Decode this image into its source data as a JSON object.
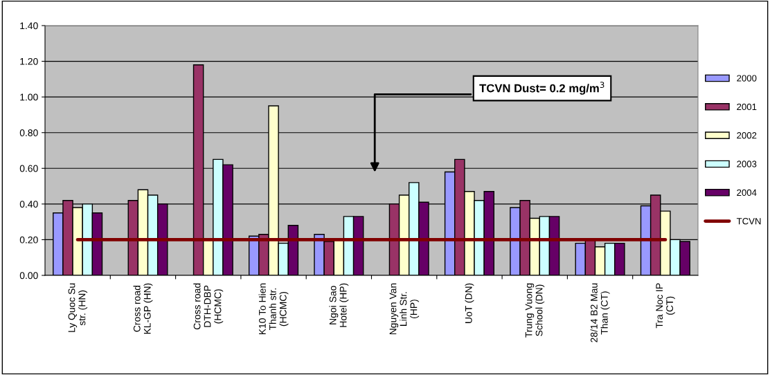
{
  "chart_data": {
    "type": "bar",
    "categories": [
      "Ly Quoc Su str. (HN)",
      "Cross road KL-GP (HN)",
      "Cross road DTH-DBP (HCMC)",
      "K10 To Hien Thanh str. (HCMC)",
      "Ngoi Sao Hotel (HP)",
      "Nguyen Van Linh Str. (HP)",
      "UoT (DN)",
      "Trung Vuong School (DN)",
      "28/14 B2 Mau Than (CT)",
      "Tra Noc IP (CT)"
    ],
    "series": [
      {
        "name": "2000",
        "color": "#9999ff",
        "values": [
          0.35,
          null,
          null,
          0.22,
          0.23,
          null,
          0.58,
          0.38,
          0.18,
          0.39
        ]
      },
      {
        "name": "2001",
        "color": "#993366",
        "values": [
          0.42,
          0.42,
          1.18,
          0.23,
          0.19,
          0.4,
          0.65,
          0.42,
          0.2,
          0.45
        ]
      },
      {
        "name": "2002",
        "color": "#ffffcc",
        "values": [
          0.38,
          0.48,
          0.2,
          0.95,
          0.2,
          0.45,
          0.47,
          0.32,
          0.16,
          0.36
        ]
      },
      {
        "name": "2003",
        "color": "#ccffff",
        "values": [
          0.4,
          0.45,
          0.65,
          0.18,
          0.33,
          0.52,
          0.42,
          0.33,
          0.18,
          0.2
        ]
      },
      {
        "name": "2004",
        "color": "#660066",
        "values": [
          0.35,
          0.4,
          0.62,
          0.28,
          0.33,
          0.41,
          0.47,
          0.33,
          0.18,
          0.19
        ]
      },
      {
        "name": "TCVN",
        "color": "#800000",
        "type": "line",
        "values": [
          0.2,
          0.2,
          0.2,
          0.2,
          0.2,
          0.2,
          0.2,
          0.2,
          0.2,
          0.2
        ]
      }
    ],
    "ylim": [
      0,
      1.4
    ],
    "yticks": [
      {
        "value": 0,
        "label": "0.00"
      },
      {
        "value": 0.2,
        "label": "0.20"
      },
      {
        "value": 0.4,
        "label": "0.40"
      },
      {
        "value": 0.6,
        "label": "0.60"
      },
      {
        "value": 0.8,
        "label": "0.80"
      },
      {
        "value": 1.0,
        "label": "1.00"
      },
      {
        "value": 1.2,
        "label": "1.20"
      },
      {
        "value": 1.4,
        "label": "1.40"
      }
    ],
    "grid": "y",
    "legend": "right",
    "annotations": [
      "TCVN Dust= 0.2 mg/m$^{3}$"
    ]
  }
}
